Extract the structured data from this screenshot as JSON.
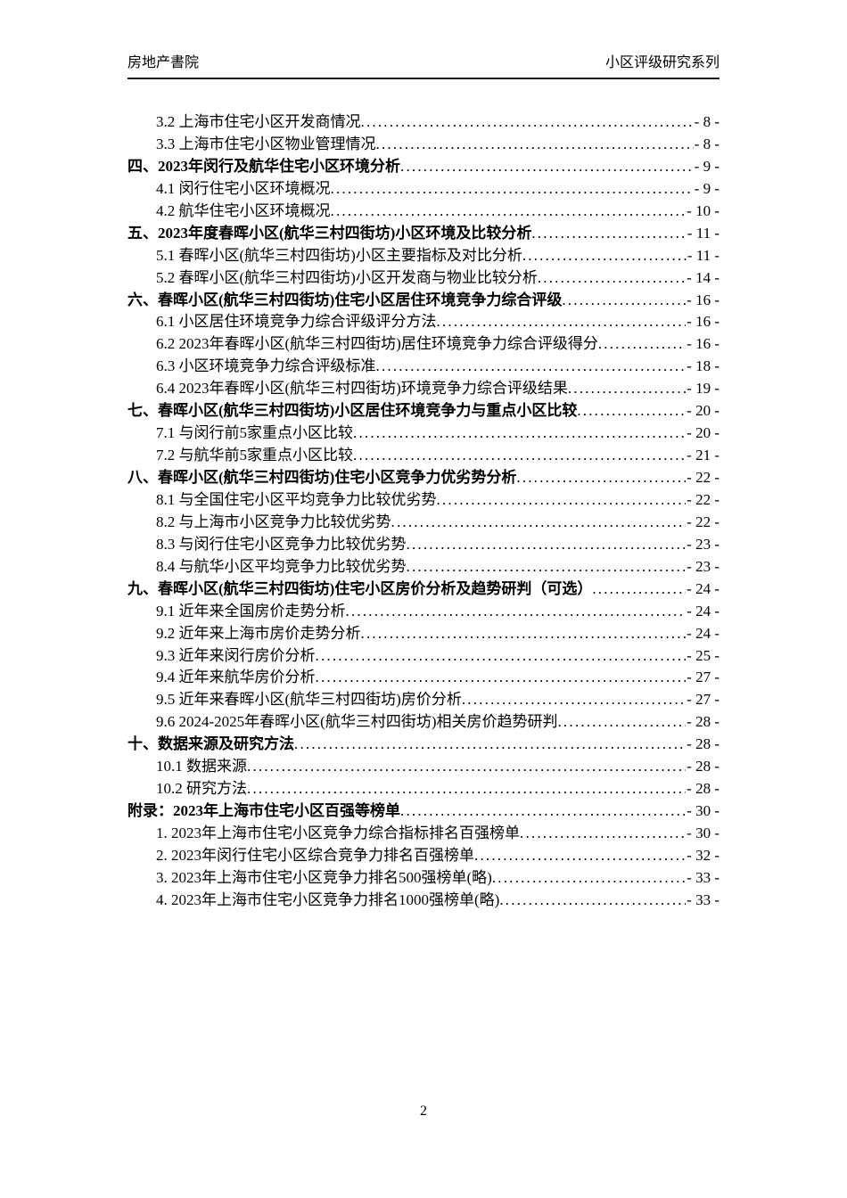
{
  "header": {
    "left": "房地产書院",
    "right": "小区评级研究系列"
  },
  "toc": {
    "entries": [
      {
        "level": 2,
        "label": "3.2 上海市住宅小区开发商情况",
        "page": "- 8 -"
      },
      {
        "level": 2,
        "label": "3.3 上海市住宅小区物业管理情况",
        "page": "- 8 -"
      },
      {
        "level": 1,
        "label": "四、2023年闵行及航华住宅小区环境分析",
        "page": "- 9 -"
      },
      {
        "level": 2,
        "label": "4.1 闵行住宅小区环境概况",
        "page": "- 9 -"
      },
      {
        "level": 2,
        "label": "4.2 航华住宅小区环境概况",
        "page": "- 10 -"
      },
      {
        "level": 1,
        "label": "五、2023年度春晖小区(航华三村四街坊)小区环境及比较分析",
        "page": "- 11 -"
      },
      {
        "level": 2,
        "label": "5.1 春晖小区(航华三村四街坊)小区主要指标及对比分析",
        "page": "- 11 -"
      },
      {
        "level": 2,
        "label": "5.2 春晖小区(航华三村四街坊)小区开发商与物业比较分析",
        "page": "- 14 -"
      },
      {
        "level": 1,
        "label": "六、春晖小区(航华三村四街坊)住宅小区居住环境竞争力综合评级",
        "page": "- 16 -"
      },
      {
        "level": 2,
        "label": "6.1 小区居住环境竞争力综合评级评分方法",
        "page": "- 16 -"
      },
      {
        "level": 2,
        "label": "6.2 2023年春晖小区(航华三村四街坊)居住环境竞争力综合评级得分",
        "page": "- 16 -"
      },
      {
        "level": 2,
        "label": "6.3 小区环境竞争力综合评级标准",
        "page": "- 18 -"
      },
      {
        "level": 2,
        "label": "6.4 2023年春晖小区(航华三村四街坊)环境竞争力综合评级结果",
        "page": "- 19 -"
      },
      {
        "level": 1,
        "label": "七、春晖小区(航华三村四街坊)小区居住环境竞争力与重点小区比较",
        "page": "- 20 -"
      },
      {
        "level": 2,
        "label": "7.1 与闵行前5家重点小区比较",
        "page": "- 20 -"
      },
      {
        "level": 2,
        "label": "7.2 与航华前5家重点小区比较",
        "page": "- 21 -"
      },
      {
        "level": 1,
        "label": "八、春晖小区(航华三村四街坊)住宅小区竞争力优劣势分析",
        "page": "- 22 -"
      },
      {
        "level": 2,
        "label": "8.1 与全国住宅小区平均竞争力比较优劣势",
        "page": "- 22 -"
      },
      {
        "level": 2,
        "label": "8.2 与上海市小区竞争力比较优劣势",
        "page": "- 22 -"
      },
      {
        "level": 2,
        "label": "8.3 与闵行住宅小区竞争力比较优劣势",
        "page": "- 23 -"
      },
      {
        "level": 2,
        "label": "8.4 与航华小区平均竞争力比较优劣势",
        "page": "- 23 -"
      },
      {
        "level": 1,
        "label": "九、春晖小区(航华三村四街坊)住宅小区房价分析及趋势研判（可选）",
        "page": "- 24 -"
      },
      {
        "level": 2,
        "label": "9.1 近年来全国房价走势分析",
        "page": "- 24 -"
      },
      {
        "level": 2,
        "label": "9.2 近年来上海市房价走势分析",
        "page": "- 24 -"
      },
      {
        "level": 2,
        "label": "9.3 近年来闵行房价分析",
        "page": "- 25 -"
      },
      {
        "level": 2,
        "label": "9.4 近年来航华房价分析",
        "page": "- 27 -"
      },
      {
        "level": 2,
        "label": "9.5 近年来春晖小区(航华三村四街坊)房价分析",
        "page": "- 27 -"
      },
      {
        "level": 2,
        "label": "9.6 2024-2025年春晖小区(航华三村四街坊)相关房价趋势研判",
        "page": "- 28 -"
      },
      {
        "level": 1,
        "label": "十、数据来源及研究方法",
        "page": "- 28 -"
      },
      {
        "level": 2,
        "label": "10.1 数据来源",
        "page": "- 28 -"
      },
      {
        "level": 2,
        "label": "10.2 研究方法",
        "page": "- 28 -"
      },
      {
        "level": 1,
        "label": "附录：2023年上海市住宅小区百强等榜单",
        "page": "- 30 -"
      },
      {
        "level": 2,
        "label": "1. 2023年上海市住宅小区竞争力综合指标排名百强榜单",
        "page": "- 30 -"
      },
      {
        "level": 2,
        "label": "2. 2023年闵行住宅小区综合竞争力排名百强榜单",
        "page": "- 32 -"
      },
      {
        "level": 2,
        "label": "3. 2023年上海市住宅小区竞争力排名500强榜单(略)",
        "page": "- 33 -"
      },
      {
        "level": 2,
        "label": "4. 2023年上海市住宅小区竞争力排名1000强榜单(略)",
        "page": "- 33 -"
      }
    ]
  },
  "footer": {
    "page_number": "2"
  }
}
